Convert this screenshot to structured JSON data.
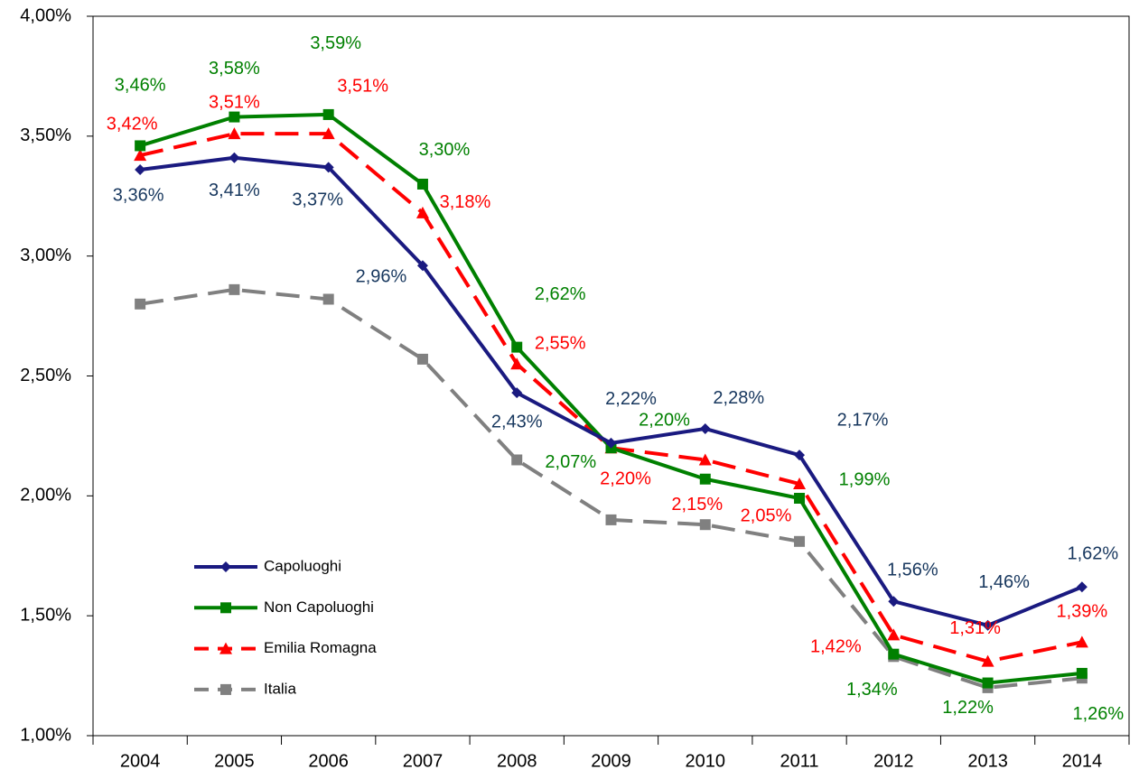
{
  "chart_data": {
    "type": "line",
    "categories": [
      "2004",
      "2005",
      "2006",
      "2007",
      "2008",
      "2009",
      "2010",
      "2011",
      "2012",
      "2013",
      "2014"
    ],
    "ylim": [
      1,
      4
    ],
    "yticks": [
      {
        "value": 1,
        "label": "1,00%"
      },
      {
        "value": 1.5,
        "label": "1,50%"
      },
      {
        "value": 2,
        "label": "2,00%"
      },
      {
        "value": 2.5,
        "label": "2,50%"
      },
      {
        "value": 3,
        "label": "3,00%"
      },
      {
        "value": 3.5,
        "label": "3,50%"
      },
      {
        "value": 4,
        "label": "4,00%"
      }
    ],
    "legend": "bottom-left",
    "series": [
      {
        "name": "Capoluoghi",
        "color": "#1a1a80",
        "label_color": "#17375e",
        "marker": "diamond",
        "dashed": false,
        "values": [
          3.36,
          3.41,
          3.37,
          2.96,
          2.43,
          2.22,
          2.28,
          2.17,
          1.56,
          1.46,
          1.62
        ],
        "value_labels": [
          "3,36%",
          "3,41%",
          "3,37%",
          "2,96%",
          "2,43%",
          "2,22%",
          "2,28%",
          "2,17%",
          "1,56%",
          "1,46%",
          "1,62%"
        ]
      },
      {
        "name": "Non Capoluoghi",
        "color": "#008000",
        "label_color": "#008000",
        "marker": "square",
        "dashed": false,
        "values": [
          3.46,
          3.58,
          3.59,
          3.3,
          2.62,
          2.2,
          2.07,
          1.99,
          1.34,
          1.22,
          1.26
        ],
        "value_labels": [
          "3,46%",
          "3,58%",
          "3,59%",
          "3,30%",
          "2,62%",
          "2,20%",
          "2,07%",
          "1,99%",
          "1,34%",
          "1,22%",
          "1,26%"
        ]
      },
      {
        "name": "Emilia Romagna",
        "color": "#ff0000",
        "label_color": "#ff0000",
        "marker": "triangle",
        "dashed": true,
        "values": [
          3.42,
          3.51,
          3.51,
          3.18,
          2.55,
          2.2,
          2.15,
          2.05,
          1.42,
          1.31,
          1.39
        ],
        "value_labels": [
          "3,42%",
          "3,51%",
          "3,51%",
          "3,18%",
          "2,55%",
          "2,20%",
          "2,15%",
          "2,05%",
          "1,42%",
          "1,31%",
          "1,39%"
        ]
      },
      {
        "name": "Italia",
        "color": "#808080",
        "marker": "square",
        "dashed": true,
        "values": [
          2.8,
          2.86,
          2.82,
          2.57,
          2.15,
          1.9,
          1.88,
          1.81,
          1.33,
          1.2,
          1.24
        ]
      }
    ]
  }
}
